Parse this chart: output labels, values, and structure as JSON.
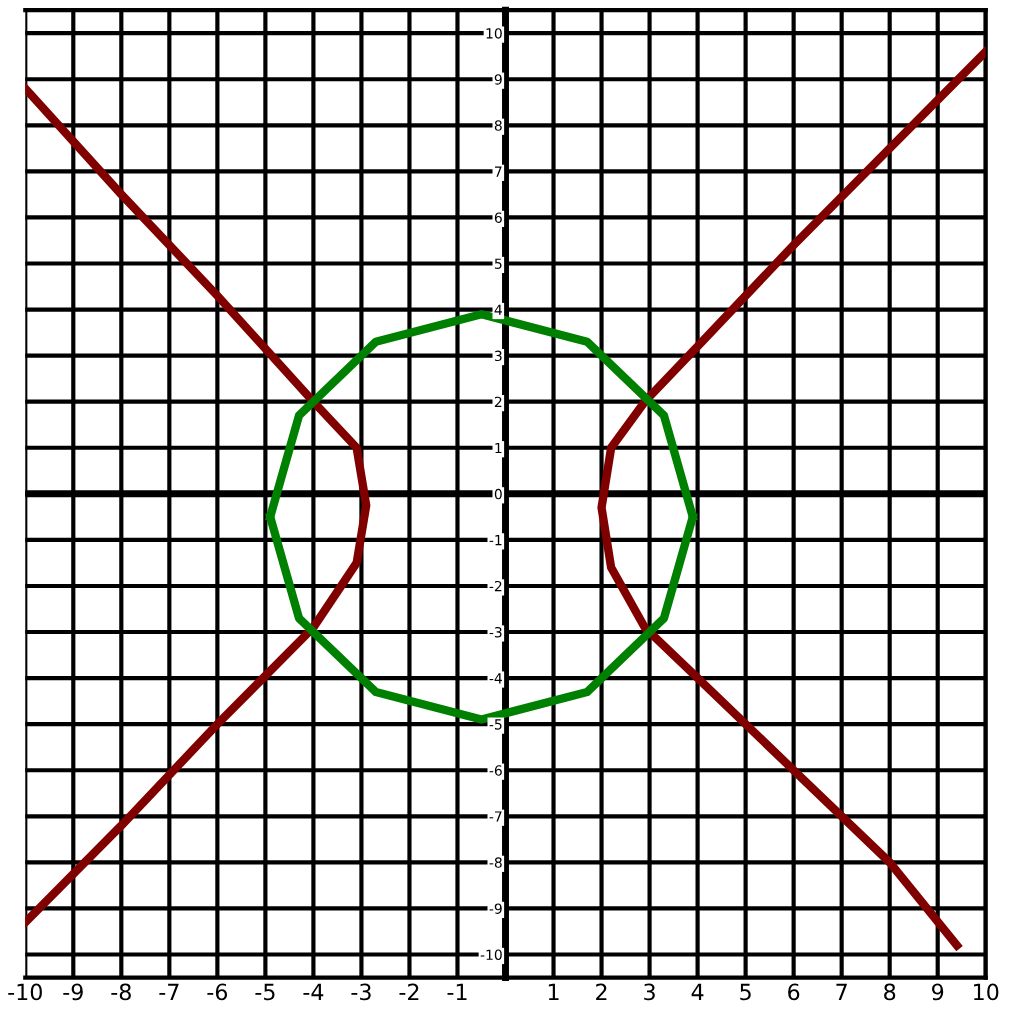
{
  "chart_data": {
    "type": "line",
    "xlim": [
      -10,
      10
    ],
    "ylim": [
      -10.5,
      10.5
    ],
    "xticks": [
      -10,
      -9,
      -8,
      -7,
      -6,
      -5,
      -4,
      -3,
      -2,
      -1,
      1,
      2,
      3,
      4,
      5,
      6,
      7,
      8,
      9,
      10
    ],
    "yticks": [
      -10,
      -9,
      -8,
      -7,
      -6,
      -5,
      -4,
      -3,
      -2,
      -1,
      0,
      1,
      2,
      3,
      4,
      5,
      6,
      7,
      8,
      9,
      10
    ],
    "grid": true,
    "marker": "none",
    "line_style": "solid",
    "series": [
      {
        "color": "#800000",
        "x": [
          10,
          8,
          6,
          4,
          2.9,
          2.2,
          2.0,
          2.2,
          2.9,
          4,
          6,
          8,
          9.4
        ],
        "values": [
          9.6,
          7.5,
          5.4,
          3.2,
          2.0,
          1.0,
          -0.3,
          -1.6,
          -2.9,
          -4.0,
          -6.0,
          -8.0,
          -9.8
        ]
      },
      {
        "color": "#800000",
        "x": [
          -10,
          -8,
          -6,
          -4,
          -3.1,
          -2.9,
          -3.1,
          -4,
          -6,
          -8,
          -10
        ],
        "values": [
          8.8,
          6.5,
          4.3,
          2.0,
          1.0,
          -0.25,
          -1.5,
          -2.9,
          -5.0,
          -7.2,
          -9.3
        ]
      },
      {
        "color": "#008000",
        "x": [
          -4.9,
          -4.3,
          -2.7,
          -0.5,
          1.7,
          3.3,
          3.9
        ],
        "values": [
          -0.5,
          1.7,
          3.3,
          3.9,
          3.3,
          1.7,
          -0.5
        ]
      },
      {
        "color": "#008000",
        "x": [
          -4.9,
          -4.3,
          -2.7,
          -0.5,
          1.7,
          3.3,
          3.9
        ],
        "values": [
          -0.5,
          -2.7,
          -4.3,
          -4.9,
          -4.3,
          -2.7,
          -0.5
        ]
      }
    ]
  }
}
